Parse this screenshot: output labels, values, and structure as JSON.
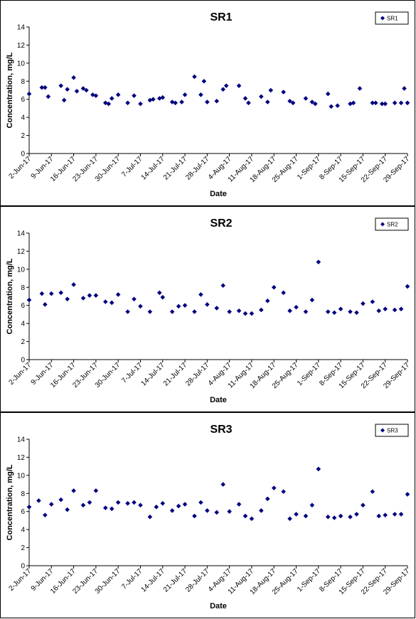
{
  "colors": {
    "marker": "#00007F",
    "axis": "#000000",
    "background": "#ffffff"
  },
  "chart_data": [
    {
      "type": "scatter",
      "title": "SR1",
      "xlabel": "Date",
      "ylabel": "Concentration, mg/L",
      "legend": "top-right",
      "legend_entries": [
        "SR1"
      ],
      "grid": false,
      "ylim": [
        0,
        14
      ],
      "yticks": [
        "0",
        "2",
        "4",
        "6",
        "8",
        "10",
        "12",
        "14"
      ],
      "xlim": [
        "2017-06-02",
        "2017-09-29"
      ],
      "xticks": [
        "2-Jun-17",
        "9-Jun-17",
        "16-Jun-17",
        "23-Jun-17",
        "30-Jun-17",
        "7-Jul-17",
        "14-Jul-17",
        "21-Jul-17",
        "28-Jul-17",
        "4-Aug-17",
        "11-Aug-17",
        "18-Aug-17",
        "25-Aug-17",
        "1-Sep-17",
        "8-Sep-17",
        "15-Sep-17",
        "22-Sep-17",
        "29-Sep-17"
      ],
      "series": [
        {
          "name": "SR1",
          "x": [
            "2017-06-02",
            "2017-06-06",
            "2017-06-07",
            "2017-06-08",
            "2017-06-12",
            "2017-06-13",
            "2017-06-14",
            "2017-06-16",
            "2017-06-17",
            "2017-06-19",
            "2017-06-20",
            "2017-06-22",
            "2017-06-23",
            "2017-06-26",
            "2017-06-27",
            "2017-06-28",
            "2017-06-30",
            "2017-07-03",
            "2017-07-05",
            "2017-07-07",
            "2017-07-10",
            "2017-07-11",
            "2017-07-13",
            "2017-07-14",
            "2017-07-17",
            "2017-07-18",
            "2017-07-20",
            "2017-07-21",
            "2017-07-24",
            "2017-07-26",
            "2017-07-27",
            "2017-07-28",
            "2017-07-31",
            "2017-08-02",
            "2017-08-03",
            "2017-08-07",
            "2017-08-09",
            "2017-08-10",
            "2017-08-14",
            "2017-08-16",
            "2017-08-17",
            "2017-08-21",
            "2017-08-23",
            "2017-08-24",
            "2017-08-28",
            "2017-08-30",
            "2017-08-31",
            "2017-09-04",
            "2017-09-05",
            "2017-09-07",
            "2017-09-11",
            "2017-09-12",
            "2017-09-14",
            "2017-09-18",
            "2017-09-19",
            "2017-09-21",
            "2017-09-22",
            "2017-09-25",
            "2017-09-27",
            "2017-09-28",
            "2017-09-29"
          ],
          "y": [
            6.6,
            7.3,
            7.3,
            6.3,
            7.5,
            5.9,
            7.1,
            8.4,
            6.9,
            7.2,
            7.0,
            6.5,
            6.4,
            5.6,
            5.5,
            6.1,
            6.5,
            5.6,
            6.4,
            5.5,
            5.9,
            6.0,
            6.1,
            6.2,
            5.7,
            5.6,
            5.7,
            6.5,
            8.5,
            6.5,
            8.0,
            5.7,
            5.8,
            7.1,
            7.5,
            7.5,
            6.1,
            5.6,
            6.3,
            5.7,
            7.0,
            6.8,
            5.8,
            5.6,
            6.1,
            5.7,
            5.5,
            6.6,
            5.2,
            5.3,
            5.5,
            5.6,
            7.2,
            5.6,
            5.6,
            5.5,
            5.5,
            5.6,
            5.6,
            7.2,
            5.6
          ]
        }
      ]
    },
    {
      "type": "scatter",
      "title": "SR2",
      "xlabel": "Date",
      "ylabel": "Concentration, mg/L",
      "legend": "top-right",
      "legend_entries": [
        "SR2"
      ],
      "grid": false,
      "ylim": [
        0,
        14
      ],
      "yticks": [
        "0",
        "2",
        "4",
        "6",
        "8",
        "10",
        "12",
        "14"
      ],
      "xlim": [
        "2017-06-02",
        "2017-09-29"
      ],
      "xticks": [
        "2-Jun-17",
        "9-Jun-17",
        "16-Jun-17",
        "23-Jun-17",
        "30-Jun-17",
        "7-Jul-17",
        "14-Jul-17",
        "21-Jul-17",
        "28-Jul-17",
        "4-Aug-17",
        "11-Aug-17",
        "18-Aug-17",
        "25-Aug-17",
        "1-Sep-17",
        "8-Sep-17",
        "15-Sep-17",
        "22-Sep-17",
        "29-Sep-17"
      ],
      "series": [
        {
          "name": "SR2",
          "x": [
            "2017-06-02",
            "2017-06-06",
            "2017-06-07",
            "2017-06-09",
            "2017-06-12",
            "2017-06-14",
            "2017-06-16",
            "2017-06-19",
            "2017-06-21",
            "2017-06-23",
            "2017-06-26",
            "2017-06-28",
            "2017-06-30",
            "2017-07-03",
            "2017-07-05",
            "2017-07-07",
            "2017-07-10",
            "2017-07-13",
            "2017-07-14",
            "2017-07-17",
            "2017-07-19",
            "2017-07-21",
            "2017-07-24",
            "2017-07-26",
            "2017-07-28",
            "2017-07-31",
            "2017-08-02",
            "2017-08-04",
            "2017-08-07",
            "2017-08-09",
            "2017-08-11",
            "2017-08-14",
            "2017-08-16",
            "2017-08-18",
            "2017-08-21",
            "2017-08-23",
            "2017-08-25",
            "2017-08-28",
            "2017-08-30",
            "2017-09-01",
            "2017-09-04",
            "2017-09-06",
            "2017-09-08",
            "2017-09-11",
            "2017-09-13",
            "2017-09-15",
            "2017-09-18",
            "2017-09-20",
            "2017-09-22",
            "2017-09-25",
            "2017-09-27",
            "2017-09-29"
          ],
          "y": [
            6.6,
            7.3,
            6.1,
            7.3,
            7.4,
            6.7,
            8.3,
            6.8,
            7.1,
            7.1,
            6.4,
            6.3,
            7.2,
            5.3,
            6.7,
            5.9,
            5.3,
            7.4,
            6.9,
            5.3,
            5.9,
            6.0,
            5.3,
            7.2,
            6.1,
            5.7,
            8.2,
            5.3,
            5.4,
            5.1,
            5.1,
            5.5,
            6.5,
            8.0,
            7.4,
            5.4,
            5.8,
            5.3,
            6.6,
            10.8,
            5.3,
            5.2,
            5.6,
            5.3,
            5.2,
            6.2,
            6.4,
            5.4,
            5.6,
            5.5,
            5.6,
            8.1
          ]
        }
      ]
    },
    {
      "type": "scatter",
      "title": "SR3",
      "xlabel": "Date",
      "ylabel": "Concentration, mg/L",
      "legend": "top-right",
      "legend_entries": [
        "SR3"
      ],
      "grid": false,
      "ylim": [
        0,
        14
      ],
      "yticks": [
        "0",
        "2",
        "4",
        "6",
        "8",
        "10",
        "12",
        "14"
      ],
      "xlim": [
        "2017-06-02",
        "2017-09-29"
      ],
      "xticks": [
        "2-Jun-17",
        "9-Jun-17",
        "16-Jun-17",
        "23-Jun-17",
        "30-Jun-17",
        "7-Jul-17",
        "14-Jul-17",
        "21-Jul-17",
        "28-Jul-17",
        "4-Aug-17",
        "11-Aug-17",
        "18-Aug-17",
        "25-Aug-17",
        "1-Sep-17",
        "8-Sep-17",
        "15-Sep-17",
        "22-Sep-17",
        "29-Sep-17"
      ],
      "series": [
        {
          "name": "SR3",
          "x": [
            "2017-06-02",
            "2017-06-05",
            "2017-06-07",
            "2017-06-09",
            "2017-06-12",
            "2017-06-14",
            "2017-06-16",
            "2017-06-19",
            "2017-06-21",
            "2017-06-23",
            "2017-06-26",
            "2017-06-28",
            "2017-06-30",
            "2017-07-03",
            "2017-07-05",
            "2017-07-07",
            "2017-07-10",
            "2017-07-12",
            "2017-07-14",
            "2017-07-17",
            "2017-07-19",
            "2017-07-21",
            "2017-07-24",
            "2017-07-26",
            "2017-07-28",
            "2017-07-31",
            "2017-08-02",
            "2017-08-04",
            "2017-08-07",
            "2017-08-09",
            "2017-08-11",
            "2017-08-14",
            "2017-08-16",
            "2017-08-18",
            "2017-08-21",
            "2017-08-23",
            "2017-08-25",
            "2017-08-28",
            "2017-08-30",
            "2017-09-01",
            "2017-09-04",
            "2017-09-06",
            "2017-09-08",
            "2017-09-11",
            "2017-09-13",
            "2017-09-15",
            "2017-09-18",
            "2017-09-20",
            "2017-09-22",
            "2017-09-25",
            "2017-09-27",
            "2017-09-29"
          ],
          "y": [
            6.5,
            7.2,
            5.6,
            6.8,
            7.3,
            6.2,
            8.3,
            6.7,
            7.0,
            8.3,
            6.4,
            6.3,
            7.0,
            6.9,
            7.0,
            6.7,
            5.4,
            6.5,
            6.9,
            6.1,
            6.6,
            6.8,
            5.5,
            7.0,
            6.1,
            5.9,
            9.0,
            6.0,
            6.8,
            5.5,
            5.2,
            6.1,
            7.4,
            8.6,
            8.2,
            5.2,
            5.7,
            5.5,
            6.7,
            10.7,
            5.4,
            5.3,
            5.5,
            5.4,
            5.7,
            6.7,
            8.2,
            5.5,
            5.6,
            5.7,
            5.7,
            7.9
          ]
        }
      ]
    }
  ]
}
